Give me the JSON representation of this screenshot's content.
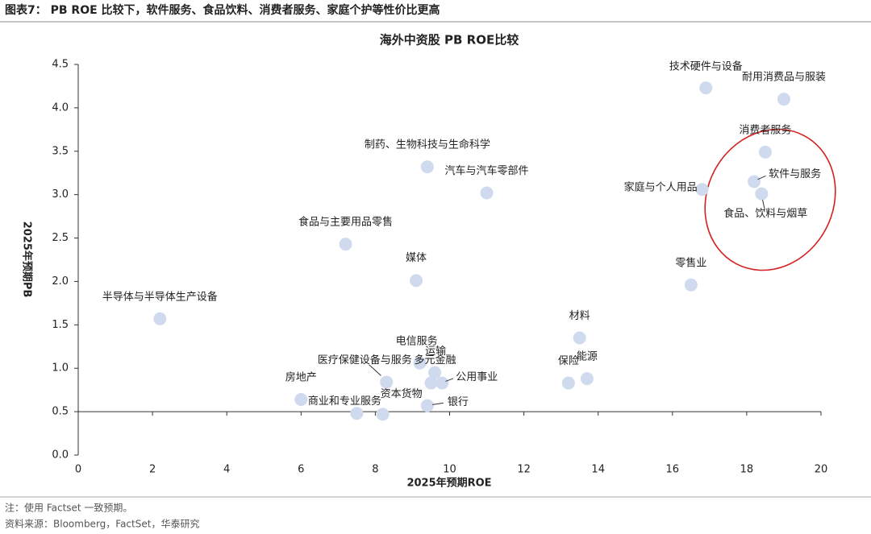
{
  "header": {
    "title": "图表7：  PB ROE 比较下，软件服务、食品饮料、消费者服务、家庭个护等性价比更高"
  },
  "notes": [
    "注：使用 Factset 一致预期。",
    "资料来源：Bloomberg，FactSet，华泰研究"
  ],
  "chart_data": {
    "type": "scatter",
    "title": "海外中资股 PB ROE比较",
    "xlabel": "2025年预期ROE",
    "ylabel": "2025年预期PB",
    "color": "#cfdaee",
    "labels": [
      "技术硬件与设备",
      "耐用消费品与服装",
      "消费者服务",
      "软件与服务",
      "食品、饮料与烟草",
      "家庭与个人用品",
      "零售业",
      "制药、生物科技与生命科学",
      "汽车与汽车零部件",
      "食品与主要用品零售",
      "媒体",
      "半导体与半导体生产设备",
      "材料",
      "能源",
      "保险",
      "电信服务",
      "运输",
      "多元金融",
      "公用事业",
      "医疗保健设备与服务",
      "房地产",
      "商业和专业服务",
      "资本货物",
      "银行"
    ],
    "x": [
      16.9,
      19.0,
      18.5,
      18.2,
      18.4,
      16.8,
      16.5,
      9.4,
      11.0,
      7.2,
      9.1,
      2.2,
      13.5,
      13.7,
      13.2,
      9.2,
      9.6,
      9.5,
      9.8,
      8.3,
      6.0,
      7.5,
      8.2,
      9.4
    ],
    "y": [
      4.23,
      4.1,
      3.49,
      3.15,
      3.01,
      3.06,
      1.96,
      3.32,
      3.02,
      2.43,
      2.01,
      1.57,
      1.35,
      0.88,
      0.83,
      1.06,
      0.95,
      0.83,
      0.83,
      0.84,
      0.64,
      0.48,
      0.47,
      0.57
    ],
    "xlim": [
      0,
      20
    ],
    "ylim": [
      0,
      4.5
    ],
    "xticks": [
      0,
      2,
      4,
      6,
      8,
      10,
      12,
      14,
      16,
      18,
      20
    ],
    "yticks": [
      {
        "value": 0,
        "label": "0.0"
      },
      0.5,
      {
        "value": 1,
        "label": "1.0"
      },
      1.5,
      {
        "value": 2,
        "label": "2.0"
      },
      2.5,
      {
        "value": 3,
        "label": "3.0"
      },
      3.5,
      {
        "value": 4,
        "label": "4.0"
      },
      4.5
    ],
    "x_axis_at": 0.5
  }
}
